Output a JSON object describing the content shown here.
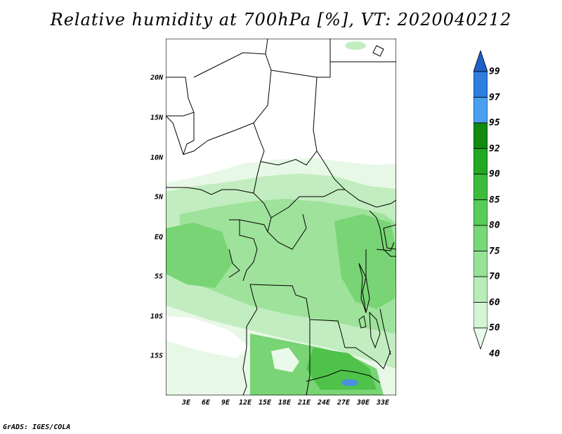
{
  "title": "Relative humidity at 700hPa [%], VT: 2020040212",
  "credit": "GrADS: IGES/COLA",
  "y_ticks": [
    "20N",
    "15N",
    "10N",
    "5N",
    "EQ",
    "5S",
    "10S",
    "15S"
  ],
  "x_ticks": [
    "3E",
    "6E",
    "9E",
    "12E",
    "15E",
    "18E",
    "21E",
    "24E",
    "27E",
    "30E",
    "33E"
  ],
  "colorbar": {
    "labels": [
      "99",
      "97",
      "95",
      "92",
      "90",
      "85",
      "80",
      "75",
      "70",
      "60",
      "50",
      "40"
    ],
    "colors": [
      "#1e5fc8",
      "#2f7fe0",
      "#4aa0f0",
      "#108a10",
      "#22a822",
      "#3cbc3c",
      "#58cc58",
      "#78d878",
      "#98e298",
      "#b8ecb8",
      "#d4f4d4",
      "#eafaea"
    ]
  },
  "field_colors": {
    "light": "#e8f8e6",
    "mid": "#c2edc0",
    "medium": "#9fe29b",
    "dark": "#78d474",
    "darker": "#4fc24a",
    "blue": "#4a90e0"
  }
}
